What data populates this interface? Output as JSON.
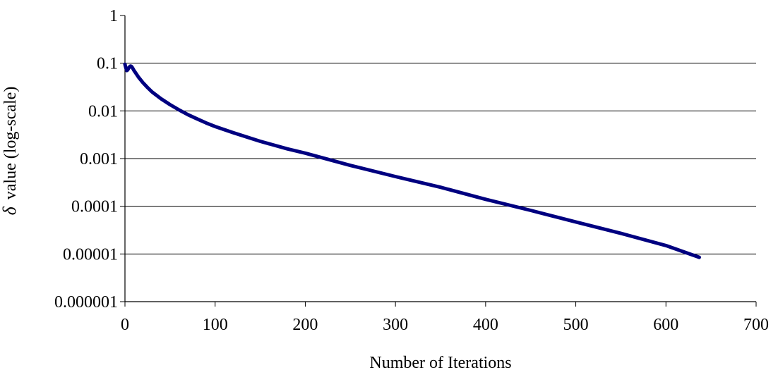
{
  "chart_data": {
    "type": "line",
    "xlabel": "Number of Iterations",
    "ylabel_symbol": "δ",
    "ylabel": "value (log-scale)",
    "xlim": [
      0,
      700
    ],
    "ylim": [
      1e-06,
      1
    ],
    "yscale": "log",
    "x_ticks": [
      "0",
      "100",
      "200",
      "300",
      "400",
      "500",
      "600",
      "700"
    ],
    "y_ticks": [
      "1",
      "0.1",
      "0.01",
      "0.001",
      "0.0001",
      "0.00001",
      "0.000001"
    ],
    "grid": "horizontal",
    "series": [
      {
        "color": "#000080",
        "x": [
          0,
          1,
          2,
          3,
          4,
          5,
          6,
          7,
          8,
          9,
          10,
          12,
          15,
          20,
          25,
          30,
          40,
          50,
          60,
          70,
          80,
          90,
          100,
          120,
          150,
          180,
          200,
          250,
          300,
          350,
          400,
          450,
          500,
          550,
          600,
          637
        ],
        "y": [
          0.095,
          0.08,
          0.07,
          0.072,
          0.078,
          0.084,
          0.087,
          0.086,
          0.082,
          0.076,
          0.07,
          0.062,
          0.051,
          0.039,
          0.031,
          0.025,
          0.018,
          0.0135,
          0.0105,
          0.0083,
          0.0068,
          0.0056,
          0.0047,
          0.0035,
          0.0023,
          0.0016,
          0.0013,
          0.00072,
          0.00042,
          0.00025,
          0.00014,
          8.2e-05,
          4.7e-05,
          2.7e-05,
          1.5e-05,
          8.5e-06
        ]
      }
    ]
  }
}
